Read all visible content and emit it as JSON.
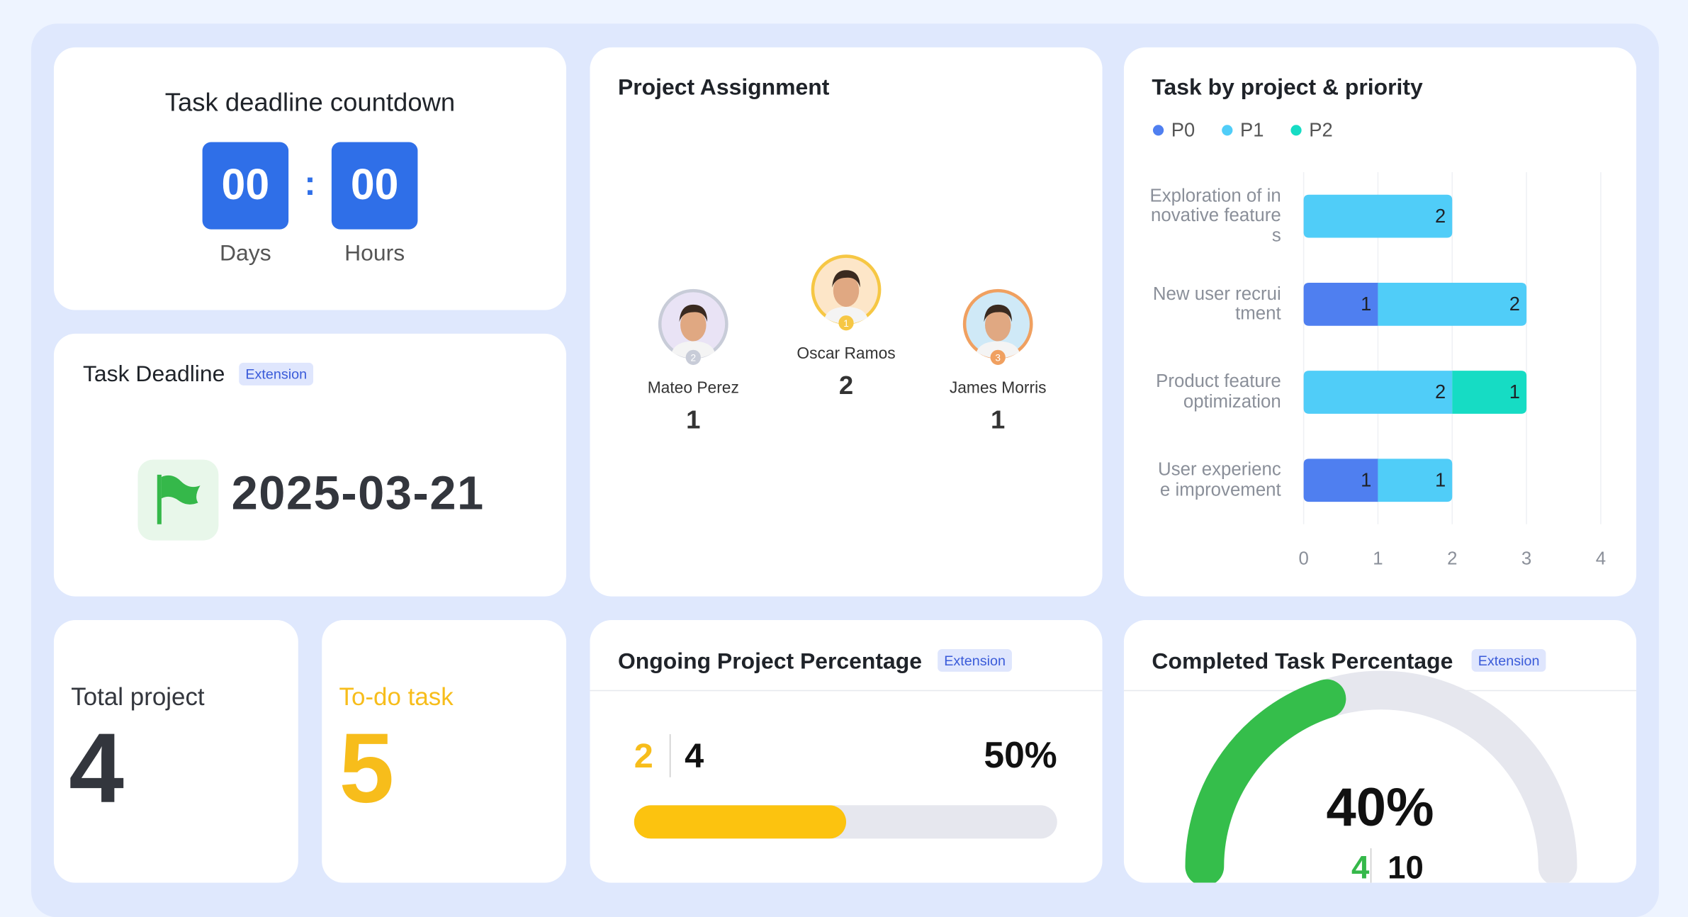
{
  "countdown": {
    "title": "Task deadline countdown",
    "days": "00",
    "days_label": "Days",
    "hours": "00",
    "hours_label": "Hours"
  },
  "deadline": {
    "title": "Task Deadline",
    "badge": "Extension",
    "date": "2025-03-21"
  },
  "assignment": {
    "title": "Project Assignment",
    "people": [
      {
        "name": "Mateo Perez",
        "count": 1,
        "rank": 2
      },
      {
        "name": "Oscar Ramos",
        "count": 2,
        "rank": 1
      },
      {
        "name": "James Morris",
        "count": 1,
        "rank": 3
      }
    ]
  },
  "chart_data": {
    "type": "bar",
    "title": "Task by project & priority",
    "categories": [
      "Exploration of innovative features",
      "New user recruitment",
      "Product feature optimization",
      "User experience improvement"
    ],
    "series": [
      {
        "name": "P0",
        "color": "#4f7ff0",
        "values": [
          null,
          1,
          null,
          1
        ]
      },
      {
        "name": "P1",
        "color": "#50cdf8",
        "values": [
          2,
          2,
          2,
          1
        ]
      },
      {
        "name": "P2",
        "color": "#16dcc4",
        "values": [
          null,
          null,
          1,
          null
        ]
      }
    ],
    "xlim": [
      0,
      4
    ],
    "xticks": [
      0,
      1,
      2,
      3,
      4
    ],
    "grid": true
  },
  "total_project": {
    "label": "Total project",
    "value": 4
  },
  "todo": {
    "label": "To-do task",
    "value": 5
  },
  "ongoing": {
    "title": "Ongoing Project Percentage",
    "badge": "Extension",
    "done": 2,
    "total": 4,
    "percent_label": "50%"
  },
  "completed": {
    "title": "Completed Task Percentage",
    "badge": "Extension",
    "done": 4,
    "total": 10,
    "percent_label": "40%"
  }
}
